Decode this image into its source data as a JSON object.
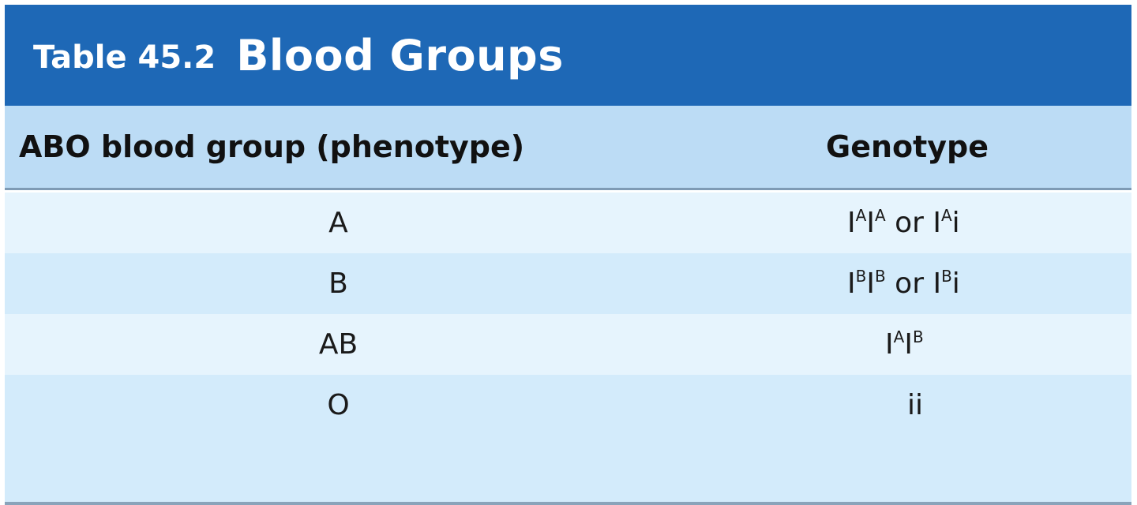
{
  "title": {
    "label": "Table 45.2",
    "text": "Blood Groups"
  },
  "columns": {
    "phenotype": "ABO blood group (phenotype)",
    "genotype": "Genotype"
  },
  "rows": [
    {
      "phenotype": "A",
      "genotype_parts": [
        {
          "base": "I",
          "sup": "A"
        },
        {
          "base": "I",
          "sup": "A"
        },
        {
          "text": " or "
        },
        {
          "base": "I",
          "sup": "A"
        },
        {
          "text": "i"
        }
      ]
    },
    {
      "phenotype": "B",
      "genotype_parts": [
        {
          "base": "I",
          "sup": "B"
        },
        {
          "base": "I",
          "sup": "B"
        },
        {
          "text": " or "
        },
        {
          "base": "I",
          "sup": "B"
        },
        {
          "text": "i"
        }
      ]
    },
    {
      "phenotype": "AB",
      "genotype_parts": [
        {
          "base": "I",
          "sup": "A"
        },
        {
          "base": "I",
          "sup": "B"
        }
      ]
    },
    {
      "phenotype": "O",
      "genotype_parts": [
        {
          "text": "ii"
        }
      ]
    }
  ],
  "colors": {
    "title_bar": "#1e68b6",
    "header_bg": "#bcdcf5",
    "row_light": "#e6f4fd",
    "row_dark": "#d3ebfb"
  }
}
